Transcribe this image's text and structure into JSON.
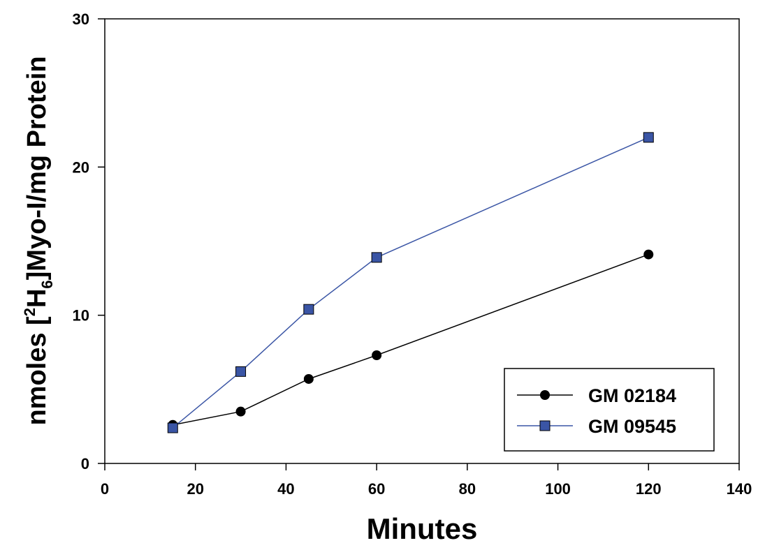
{
  "chart_data": {
    "type": "line",
    "title": "",
    "xlabel": "Minutes",
    "ylabel": {
      "before": "nmoles [",
      "sup": "2",
      "mid": "H",
      "sub": "6",
      "after": "]Myo-I/mg Protein"
    },
    "xlim": [
      0,
      140
    ],
    "ylim": [
      0,
      30
    ],
    "xticks": [
      "0",
      "20",
      "40",
      "60",
      "80",
      "100",
      "120",
      "140"
    ],
    "yticks": [
      "0",
      "10",
      "20",
      "30"
    ],
    "grid": false,
    "legend_position": "bottom-right",
    "series": [
      {
        "name": "GM 02184",
        "marker": "circle",
        "color": "#000000",
        "x": [
          15,
          30,
          45,
          60,
          120
        ],
        "y": [
          2.6,
          3.5,
          5.7,
          7.3,
          14.1
        ]
      },
      {
        "name": "GM 09545",
        "marker": "square",
        "color": "#3a55a5",
        "x": [
          15,
          30,
          45,
          60,
          120
        ],
        "y": [
          2.4,
          6.2,
          10.4,
          13.9,
          22.0
        ]
      }
    ]
  }
}
